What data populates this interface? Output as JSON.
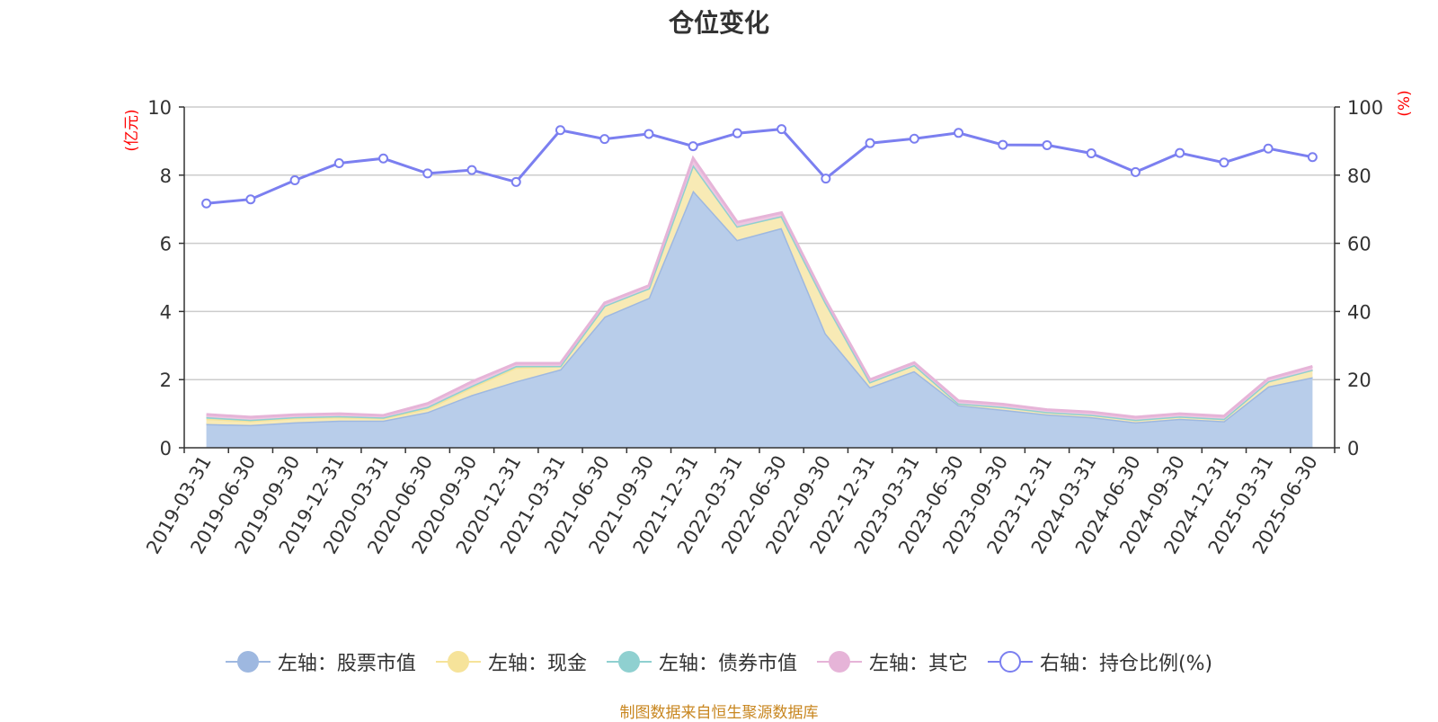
{
  "chart_data": {
    "type": "area",
    "title": "仓位变化",
    "left_axis_unit": "(亿元)",
    "right_axis_unit": "(%)",
    "ylim_left": [
      0,
      10
    ],
    "ylim_right": [
      0,
      100
    ],
    "yticks_left": [
      "0",
      "2",
      "4",
      "6",
      "8",
      "10"
    ],
    "yticks_right": [
      "0",
      "20",
      "40",
      "60",
      "80",
      "100"
    ],
    "grid": true,
    "legend_position": "bottom",
    "categories": [
      "2019-03-31",
      "2019-06-30",
      "2019-09-30",
      "2019-12-31",
      "2020-03-31",
      "2020-06-30",
      "2020-09-30",
      "2020-12-31",
      "2021-03-31",
      "2021-06-30",
      "2021-09-30",
      "2021-12-31",
      "2022-03-31",
      "2022-06-30",
      "2022-09-30",
      "2022-12-31",
      "2023-03-31",
      "2023-06-30",
      "2023-09-30",
      "2023-12-31",
      "2024-03-31",
      "2024-06-30",
      "2024-09-30",
      "2024-12-31",
      "2025-03-31",
      "2025-06-30"
    ],
    "stacked_series": [
      {
        "name": "左轴：股票市值",
        "axis": "left",
        "color": "#9eb8e0",
        "fill": "#b8cdea",
        "values": [
          0.7,
          0.67,
          0.75,
          0.8,
          0.8,
          1.05,
          1.55,
          1.95,
          2.3,
          3.85,
          4.4,
          7.55,
          6.1,
          6.45,
          3.35,
          1.78,
          2.25,
          1.25,
          1.12,
          0.98,
          0.9,
          0.75,
          0.85,
          0.78,
          1.8,
          2.07
        ]
      },
      {
        "name": "左轴：现金",
        "axis": "left",
        "color": "#f6e39a",
        "fill": "#f8eab5",
        "values": [
          0.15,
          0.12,
          0.12,
          0.1,
          0.07,
          0.1,
          0.22,
          0.4,
          0.1,
          0.32,
          0.28,
          0.75,
          0.4,
          0.35,
          0.9,
          0.15,
          0.18,
          0.05,
          0.08,
          0.07,
          0.07,
          0.07,
          0.07,
          0.07,
          0.15,
          0.22
        ]
      },
      {
        "name": "左轴：债券市值",
        "axis": "left",
        "color": "#8fd0d0",
        "fill": "#a8dcdc",
        "values": [
          0.05,
          0.03,
          0.03,
          0.03,
          0.02,
          0.05,
          0.05,
          0.05,
          0,
          0,
          0,
          0,
          0,
          0,
          0,
          0,
          0,
          0,
          0,
          0,
          0,
          0,
          0,
          0,
          0,
          0
        ]
      },
      {
        "name": "左轴：其它",
        "axis": "left",
        "color": "#e6b4d8",
        "fill": "#eec6e1",
        "values": [
          0.08,
          0.08,
          0.07,
          0.07,
          0.06,
          0.1,
          0.12,
          0.08,
          0.08,
          0.08,
          0.08,
          0.2,
          0.12,
          0.1,
          0.08,
          0.07,
          0.07,
          0.08,
          0.08,
          0.07,
          0.08,
          0.08,
          0.08,
          0.08,
          0.08,
          0.1
        ]
      }
    ],
    "line_series": {
      "name": "右轴：持仓比例(%)",
      "axis": "right",
      "color": "#7b7ff0",
      "values": [
        71.7,
        72.9,
        78.5,
        83.5,
        84.9,
        80.5,
        81.5,
        78.0,
        93.2,
        90.6,
        92.1,
        88.5,
        92.3,
        93.5,
        79.0,
        89.4,
        90.7,
        92.4,
        88.9,
        88.8,
        86.4,
        80.9,
        86.5,
        83.7,
        87.8,
        85.3
      ]
    }
  },
  "source_note": "制图数据来自恒生聚源数据库"
}
